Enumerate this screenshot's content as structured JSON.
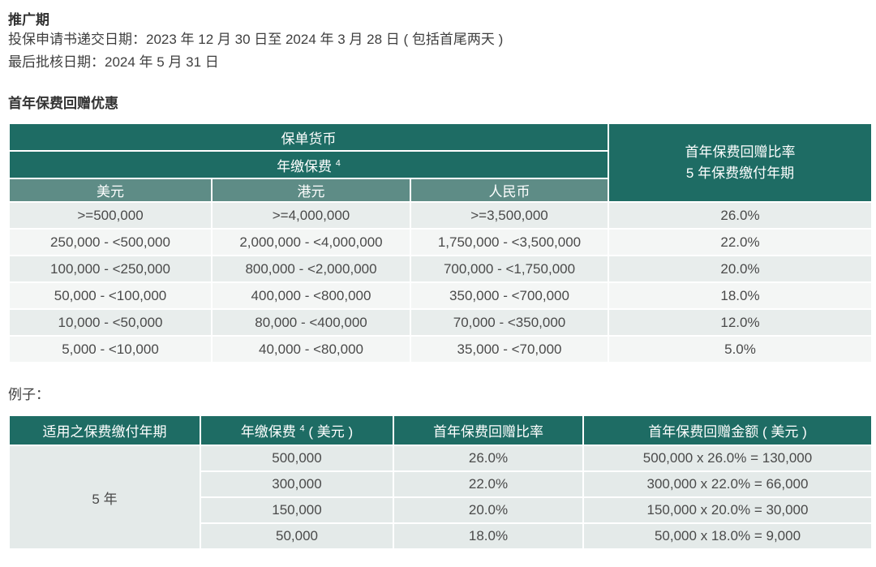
{
  "page": {
    "promo_title": "推广期",
    "promo_line1": "投保申请书递交日期：2023 年 12 月 30 日至 2024 年 3 月 28 日 ( 包括首尾两天 )",
    "promo_line2": "最后批核日期：2024 年 5 月 31 日",
    "section_title": "首年保费回赠优惠",
    "example_label": "例子："
  },
  "colors": {
    "header_dark_teal": "#1e6c64",
    "header_sage": "#5e8c86",
    "row_odd": "#e8edec",
    "row_even": "#f4f6f5",
    "example_body": "#e4eae9"
  },
  "table1": {
    "policy_currency_header": "保单货币",
    "annual_premium_header": "年缴保费",
    "footnote_marker": "4",
    "rebate_header_line1": "首年保费回赠比率",
    "rebate_header_line2": "5 年保费缴付年期",
    "currency_headers": [
      "美元",
      "港元",
      "人民币"
    ],
    "rows": [
      [
        ">=500,000",
        ">=4,000,000",
        ">=3,500,000",
        "26.0%"
      ],
      [
        "250,000 - <500,000",
        "2,000,000 - <4,000,000",
        "1,750,000 - <3,500,000",
        "22.0%"
      ],
      [
        "100,000 - <250,000",
        "800,000 - <2,000,000",
        "700,000 - <1,750,000",
        "20.0%"
      ],
      [
        "50,000 - <100,000",
        "400,000 - <800,000",
        "350,000 - <700,000",
        "18.0%"
      ],
      [
        "10,000 - <50,000",
        "80,000 - <400,000",
        "70,000 - <350,000",
        "12.0%"
      ],
      [
        "5,000 - <10,000",
        "40,000 - <80,000",
        "35,000 - <70,000",
        "5.0%"
      ]
    ]
  },
  "table2": {
    "headers": {
      "col1": "适用之保费缴付年期",
      "col2_pre": "年缴保费",
      "col2_sup": "4",
      "col2_post": " ( 美元 )",
      "col3": "首年保费回赠比率",
      "col4": "首年保费回赠金额 ( 美元 )"
    },
    "payment_term": "5 年",
    "rows": [
      [
        "500,000",
        "26.0%",
        "500,000 x 26.0% = 130,000"
      ],
      [
        "300,000",
        "22.0%",
        "300,000 x 22.0% = 66,000"
      ],
      [
        "150,000",
        "20.0%",
        "150,000 x 20.0% = 30,000"
      ],
      [
        "50,000",
        "18.0%",
        "50,000 x 18.0% = 9,000"
      ]
    ]
  }
}
